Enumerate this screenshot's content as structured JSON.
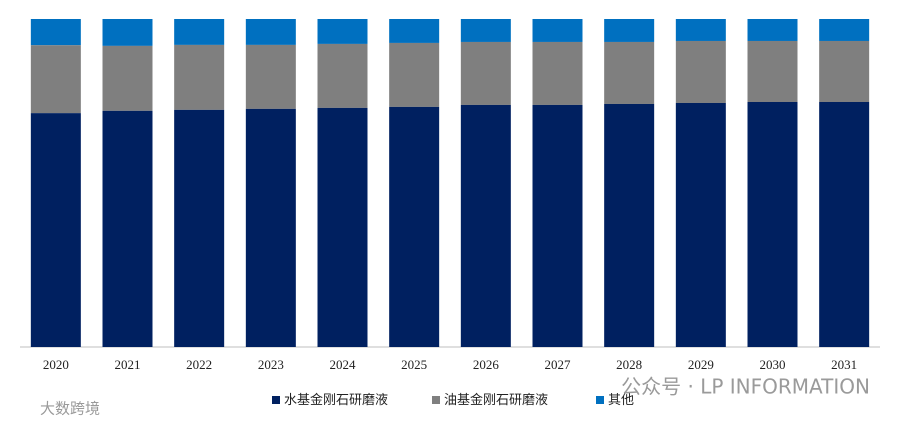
{
  "chart_data": {
    "type": "stacked_bar",
    "categories": [
      "2020",
      "2021",
      "2022",
      "2023",
      "2024",
      "2025",
      "2026",
      "2027",
      "2028",
      "2029",
      "2030",
      "2031"
    ],
    "series": [
      {
        "name": "水基金刚石研磨液",
        "color": "#002060",
        "values": [
          71.3,
          72.0,
          72.3,
          72.6,
          72.9,
          73.2,
          73.8,
          73.8,
          74.1,
          74.4,
          74.7,
          74.7
        ]
      },
      {
        "name": "油基金刚石研磨液",
        "color": "#7f7f7f",
        "values": [
          20.7,
          19.8,
          19.8,
          19.5,
          19.5,
          19.5,
          19.2,
          19.2,
          18.9,
          18.9,
          18.6,
          18.6
        ]
      },
      {
        "name": "其他",
        "color": "#0070c0",
        "values": [
          8.0,
          8.2,
          7.9,
          7.9,
          7.6,
          7.3,
          7.0,
          7.0,
          7.0,
          6.7,
          6.7,
          6.7
        ]
      }
    ],
    "ylim": [
      0,
      100
    ],
    "legend": "bottom",
    "watermarks": [
      "公众号 · LP INFORMATION",
      "大数跨境"
    ]
  }
}
